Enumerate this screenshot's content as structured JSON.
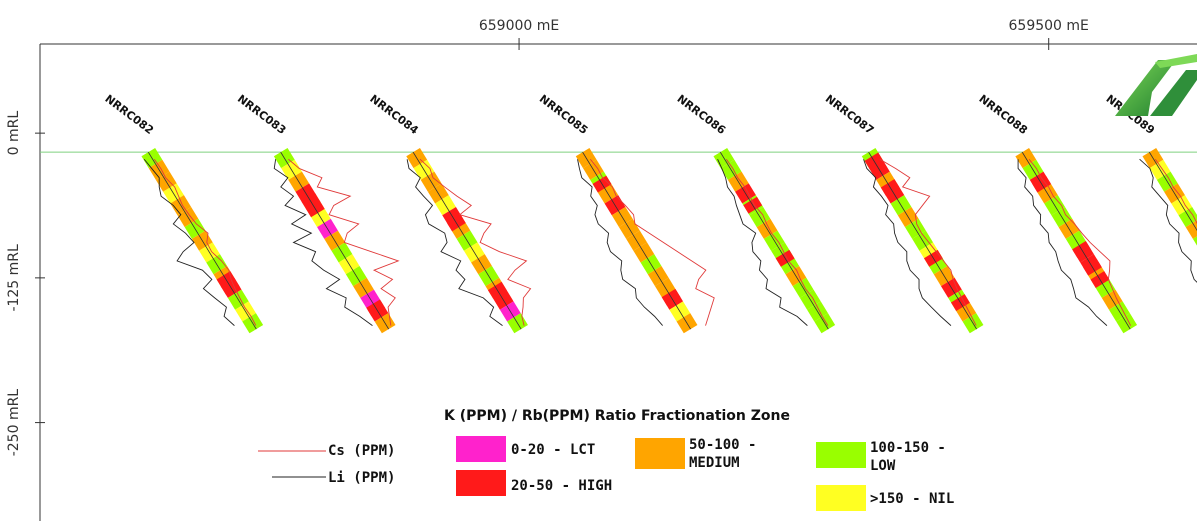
{
  "axes": {
    "x_ticks": [
      {
        "value": 659000,
        "label": "659000 mE"
      },
      {
        "value": 659500,
        "label": "659500 mE"
      }
    ],
    "y_ticks": [
      {
        "value": 0,
        "label": "0 mRL"
      },
      {
        "value": -125,
        "label": "-125 mRL"
      },
      {
        "value": -250,
        "label": "-250 mRL"
      }
    ],
    "x_range": [
      658510,
      659640
    ],
    "y_range": [
      115,
      -335
    ]
  },
  "holes": [
    {
      "name": "NRRC082",
      "collar_e": 658650,
      "zones": [
        "green",
        "orange",
        "orange",
        "yellow",
        "orange",
        "orange",
        "green",
        "orange",
        "yellow",
        "green",
        "orange",
        "red",
        "green",
        "yellow",
        "green"
      ],
      "red_bands": [
        0.72,
        0.76
      ],
      "li": [
        18,
        14,
        10,
        22,
        30,
        16,
        12,
        40,
        26,
        20,
        55,
        80,
        38,
        30,
        60,
        48,
        35,
        52,
        42
      ],
      "cs": [
        2,
        3,
        2,
        6,
        4,
        2,
        3,
        5,
        12,
        4,
        3,
        8,
        10,
        6,
        4,
        3,
        2,
        3,
        2
      ]
    },
    {
      "name": "NRRC083",
      "collar_e": 658775,
      "zones": [
        "green",
        "yellow",
        "orange",
        "red",
        "orange",
        "yellow",
        "magenta",
        "orange",
        "green",
        "yellow",
        "green",
        "orange",
        "magenta",
        "red",
        "orange"
      ],
      "red_bands": [
        0.28,
        0.32,
        0.88
      ],
      "li": [
        20,
        35,
        18,
        45,
        30,
        60,
        28,
        70,
        40,
        90,
        55,
        75,
        62,
        40,
        80,
        50,
        65,
        45,
        30
      ],
      "cs": [
        4,
        10,
        30,
        18,
        50,
        24,
        12,
        40,
        20,
        10,
        35,
        60,
        25,
        40,
        20,
        30,
        15,
        10,
        5
      ]
    },
    {
      "name": "NRRC084",
      "collar_e": 658900,
      "zones": [
        "orange",
        "yellow",
        "orange",
        "orange",
        "yellow",
        "red",
        "orange",
        "green",
        "yellow",
        "orange",
        "green",
        "orange",
        "red",
        "magenta",
        "green"
      ],
      "red_bands": [
        0.4,
        0.78
      ],
      "li": [
        22,
        30,
        18,
        40,
        35,
        28,
        55,
        60,
        38,
        45,
        70,
        40,
        62,
        55,
        80,
        40,
        30,
        50,
        35
      ],
      "cs": [
        3,
        8,
        5,
        12,
        20,
        30,
        10,
        40,
        25,
        14,
        30,
        55,
        35,
        20,
        40,
        25,
        18,
        10,
        6
      ]
    },
    {
      "name": "NRRC085",
      "collar_e": 659060,
      "zones": [
        "orange",
        "orange",
        "green",
        "orange",
        "red",
        "orange",
        "orange",
        "orange",
        "orange",
        "green",
        "orange",
        "orange",
        "red",
        "yellow",
        "orange"
      ],
      "red_bands": [
        0.18,
        0.82
      ],
      "li": [
        20,
        28,
        35,
        25,
        40,
        38,
        55,
        60,
        50,
        65,
        70,
        58,
        72,
        80,
        65,
        75,
        70,
        60,
        55
      ],
      "cs": [
        4,
        6,
        5,
        10,
        8,
        12,
        15,
        10,
        20,
        30,
        40,
        50,
        60,
        45,
        35,
        50,
        40,
        30,
        20
      ]
    },
    {
      "name": "NRRC086",
      "collar_e": 659190,
      "zones": [
        "green",
        "green",
        "orange",
        "red",
        "green",
        "green",
        "orange",
        "green",
        "green",
        "green",
        "orange",
        "green",
        "green",
        "green",
        "green"
      ],
      "red_bands": [
        0.3,
        0.6
      ],
      "li": [
        15,
        18,
        22,
        30,
        28,
        35,
        40,
        45,
        30,
        50,
        60,
        55,
        70,
        65,
        80,
        60,
        75,
        50,
        40
      ],
      "cs": [
        2,
        3,
        2,
        4,
        3,
        2,
        5,
        3,
        2,
        4,
        3,
        2,
        5,
        3,
        2,
        4,
        3,
        2,
        2
      ]
    },
    {
      "name": "NRRC087",
      "collar_e": 659330,
      "zones": [
        "green",
        "red",
        "orange",
        "red",
        "green",
        "orange",
        "green",
        "green",
        "yellow",
        "green",
        "orange",
        "red",
        "green",
        "orange",
        "green"
      ],
      "red_bands": [
        0.05,
        0.2,
        0.6,
        0.85
      ],
      "li": [
        20,
        25,
        18,
        35,
        30,
        28,
        45,
        40,
        50,
        55,
        48,
        60,
        65,
        58,
        70,
        75,
        68,
        60,
        50
      ],
      "cs": [
        8,
        20,
        30,
        15,
        40,
        25,
        10,
        5,
        4,
        6,
        8,
        10,
        12,
        8,
        6,
        5,
        4,
        3,
        2
      ]
    },
    {
      "name": "NRRC088",
      "collar_e": 659475,
      "zones": [
        "orange",
        "green",
        "red",
        "orange",
        "green",
        "green",
        "orange",
        "green",
        "red",
        "red",
        "orange",
        "green",
        "orange",
        "green",
        "green"
      ],
      "red_bands": [
        0.18,
        0.55,
        0.65,
        0.72
      ],
      "li": [
        18,
        30,
        25,
        40,
        35,
        45,
        42,
        55,
        50,
        60,
        58,
        65,
        70,
        62,
        68,
        75,
        60,
        55,
        45
      ],
      "cs": [
        3,
        5,
        4,
        6,
        5,
        8,
        6,
        10,
        12,
        15,
        20,
        25,
        18,
        10,
        8,
        6,
        5,
        4,
        3
      ]
    },
    {
      "name": "NRRC089",
      "collar_e": 659595,
      "zones": [
        "orange",
        "yellow",
        "green",
        "orange",
        "yellow",
        "green",
        "orange",
        "green",
        "yellow",
        "green",
        "orange",
        "red",
        "red",
        "orange",
        "green"
      ],
      "red_bands": [
        0.7,
        0.78,
        0.85
      ],
      "li": [
        30,
        20,
        25,
        40,
        35,
        30,
        45,
        50,
        42,
        55,
        60,
        52,
        65,
        70,
        62,
        68,
        72,
        60,
        50
      ],
      "cs": [
        2,
        3,
        4,
        3,
        5,
        4,
        6,
        5,
        4,
        8,
        6,
        10,
        12,
        8,
        6,
        5,
        4,
        3,
        2
      ]
    }
  ],
  "legend": {
    "title": "K (PPM) / Rb(PPM) Ratio Fractionation Zone",
    "lines": [
      {
        "label": "Cs (PPM)",
        "color": "#e03a3a"
      },
      {
        "label": "Li (PPM)",
        "color": "#222222"
      }
    ],
    "zones": [
      {
        "key": "magenta",
        "label": "0-20 - LCT",
        "color": "#ff22cc"
      },
      {
        "key": "red",
        "label": "20-50 - HIGH",
        "color": "#ff1a1a"
      },
      {
        "key": "orange",
        "label_line1": "50-100 -",
        "label_line2": "MEDIUM",
        "color": "#ffa500"
      },
      {
        "key": "green",
        "label_line1": "100-150 -",
        "label_line2": "LOW",
        "color": "#99ff00"
      },
      {
        "key": "yellow",
        "label": ">150 - NIL",
        "color": "#ffff22"
      }
    ]
  },
  "colors": {
    "magenta": "#ff22cc",
    "red": "#ff1a1a",
    "orange": "#ffa500",
    "green": "#99ff00",
    "yellow": "#ffff22",
    "li_line": "#222222",
    "cs_line": "#e03a3a",
    "surface_line": "#7fd17f"
  },
  "logo": {
    "icon": "company-logo-icon"
  }
}
